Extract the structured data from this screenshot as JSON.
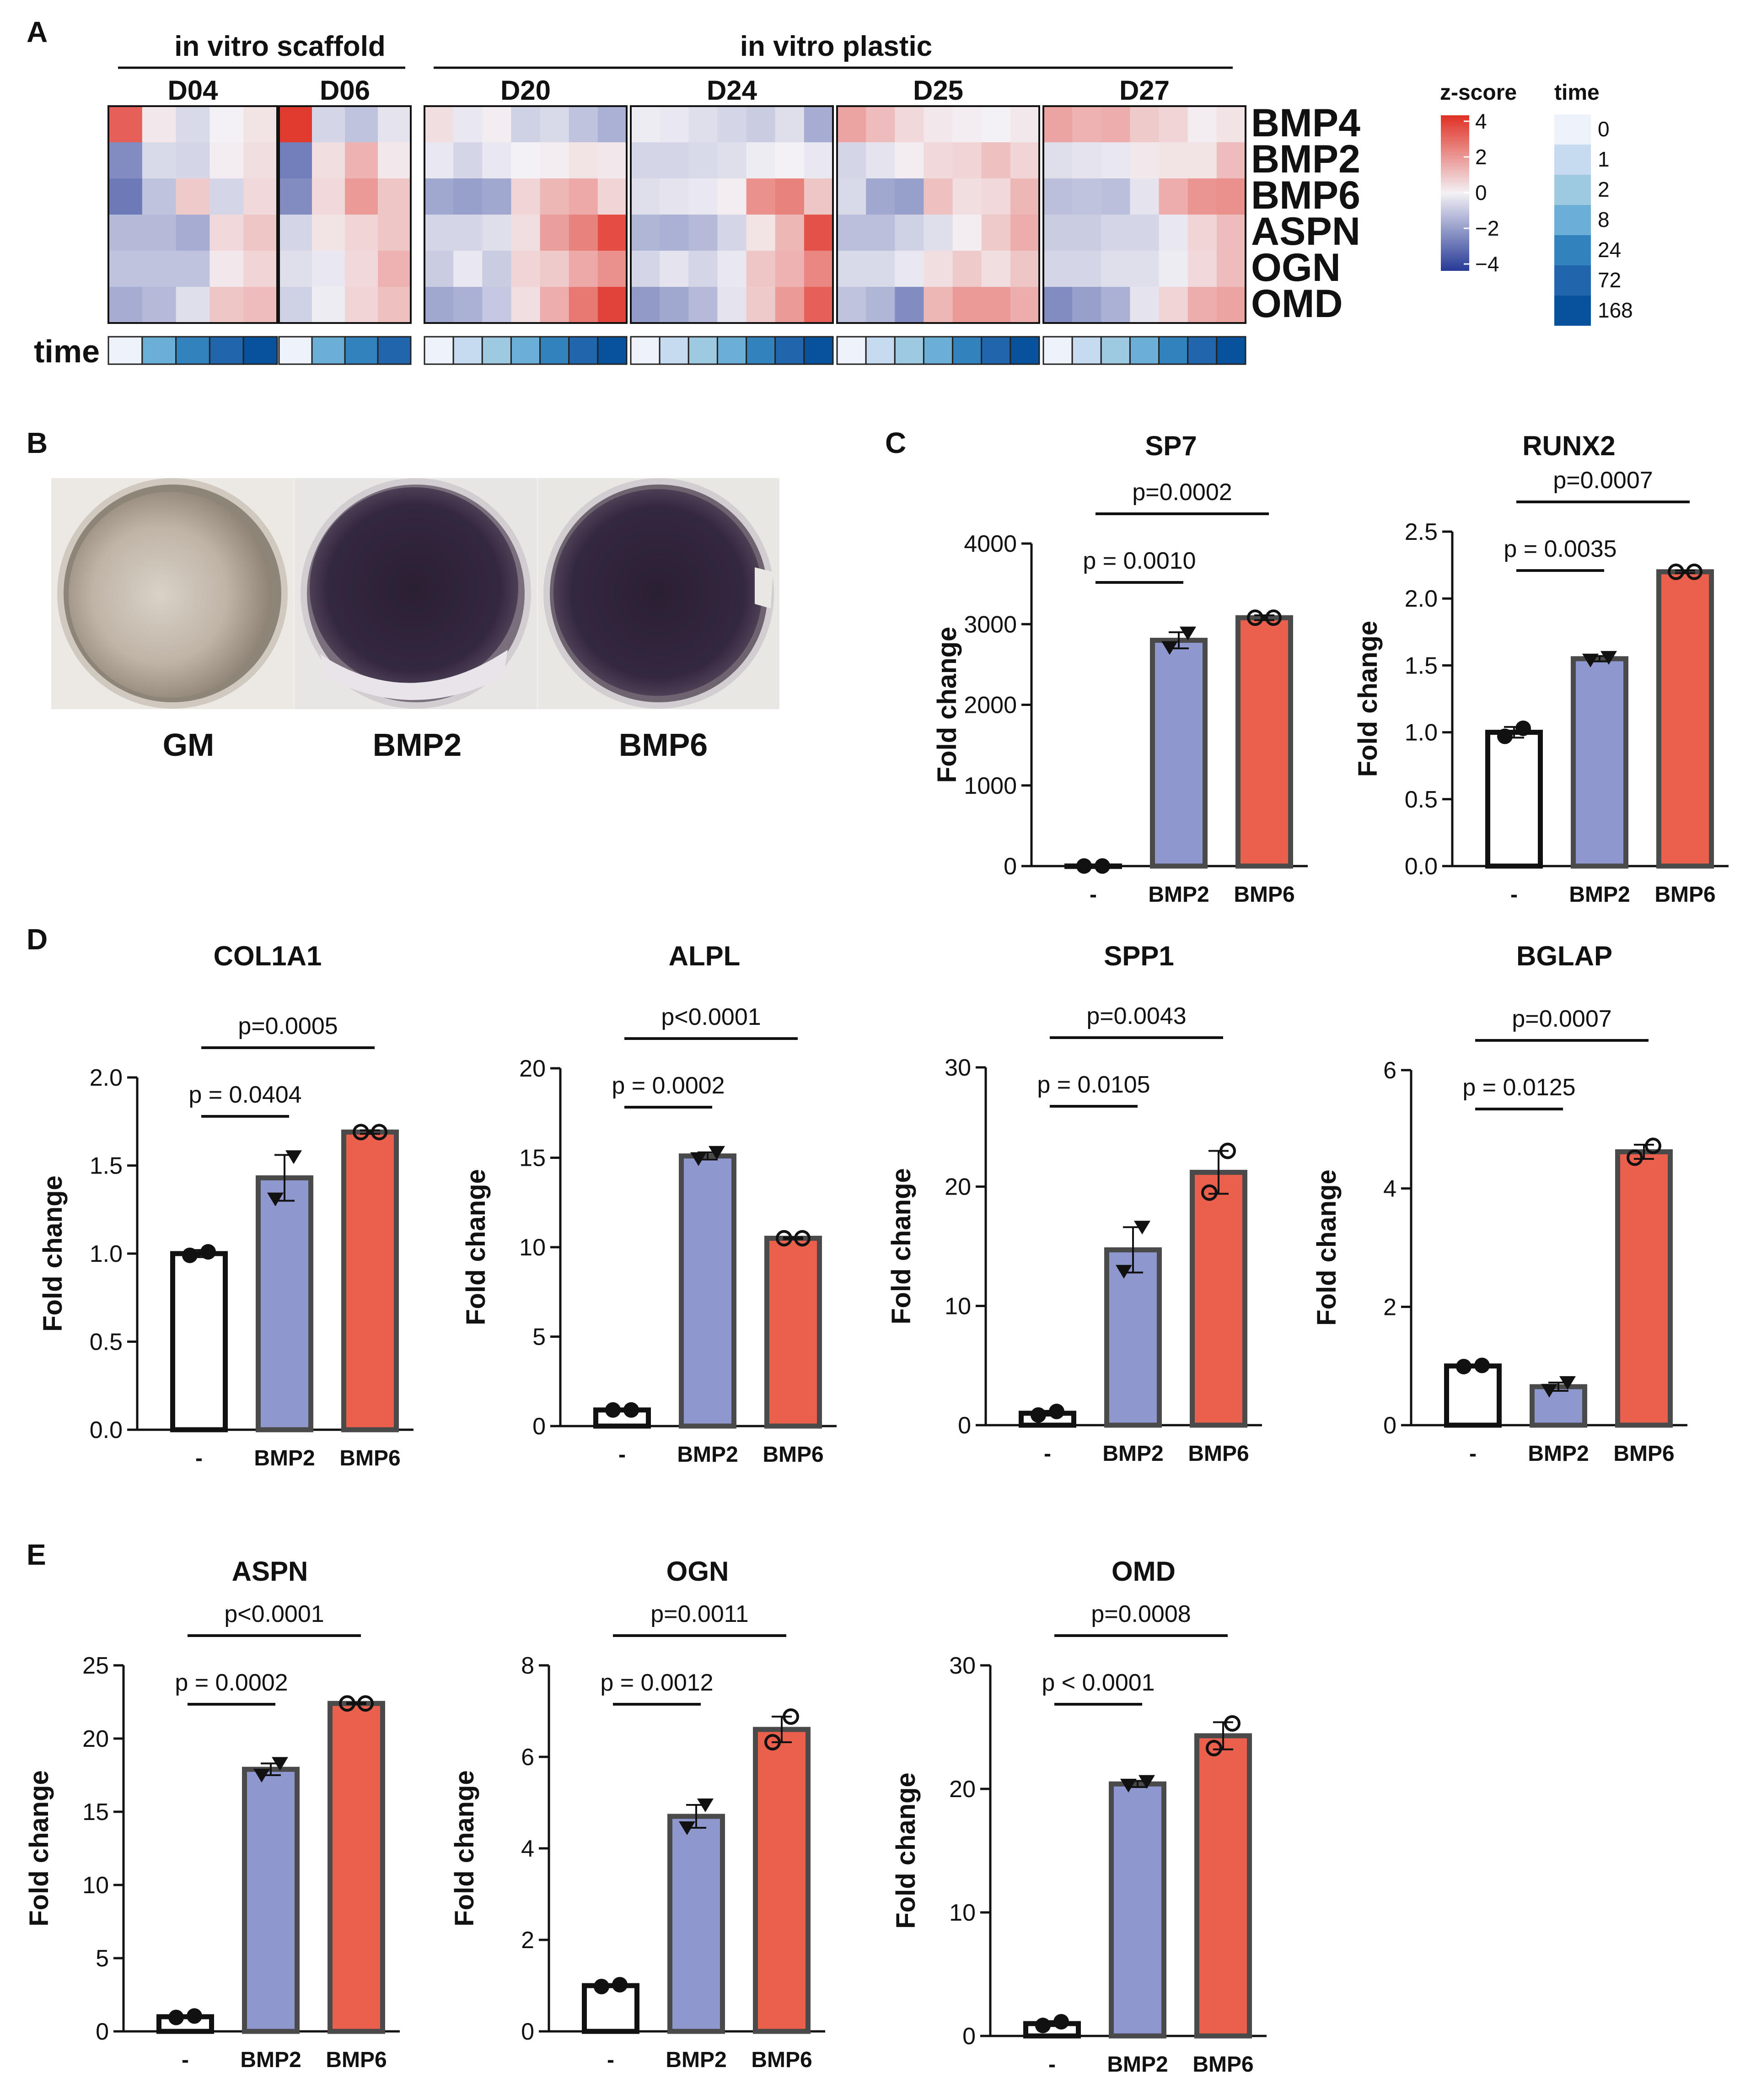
{
  "panel_labels": [
    "A",
    "B",
    "C",
    "D",
    "E"
  ],
  "panel_a": {
    "group_labels": [
      "in vitro scaffold",
      "in vitro plastic"
    ],
    "row_label": "time",
    "genes": [
      "BMP4",
      "BMP2",
      "BMP6",
      "ASPN",
      "OGN",
      "OMD"
    ],
    "legend": {
      "zscore_title": "z-score",
      "zscore_ticks": [
        "4",
        "2",
        "0",
        "−2",
        "−4"
      ],
      "time_title": "time",
      "time_values": [
        "0",
        "1",
        "2",
        "8",
        "24",
        "72",
        "168"
      ],
      "time_colors": [
        "#eef3fb",
        "#c6dbef",
        "#9ecae1",
        "#6baed6",
        "#3182bd",
        "#2166ac",
        "#08519c"
      ]
    },
    "heatmaps": [
      {
        "label": "D04",
        "time_idx": [
          0,
          3,
          4,
          5,
          6
        ],
        "z": [
          [
            3.0,
            0.2,
            -0.5,
            0.0,
            0.3
          ],
          [
            -2.2,
            -0.5,
            -0.6,
            0.1,
            0.4
          ],
          [
            -2.6,
            -1.0,
            0.8,
            -0.6,
            0.5
          ],
          [
            -1.2,
            -1.2,
            -1.5,
            0.5,
            0.9
          ],
          [
            -1.0,
            -1.0,
            -1.0,
            0.2,
            0.6
          ],
          [
            -1.5,
            -1.2,
            -0.4,
            0.9,
            1.1
          ]
        ]
      },
      {
        "label": "D06",
        "time_idx": [
          0,
          3,
          4,
          5
        ],
        "z": [
          [
            3.8,
            -0.6,
            -1.0,
            -0.3
          ],
          [
            -2.5,
            0.4,
            1.3,
            0.2
          ],
          [
            -2.2,
            0.5,
            1.8,
            0.9
          ],
          [
            -0.6,
            0.3,
            0.6,
            0.9
          ],
          [
            -0.4,
            -0.2,
            0.5,
            1.3
          ],
          [
            -0.7,
            -0.1,
            0.6,
            1.0
          ]
        ]
      },
      {
        "label": "D20",
        "time_idx": [
          0,
          1,
          2,
          3,
          4,
          5,
          6
        ],
        "z": [
          [
            0.4,
            -0.2,
            0.1,
            -0.7,
            -0.5,
            -1.0,
            -1.4
          ],
          [
            -0.2,
            -0.6,
            -0.2,
            0.0,
            0.1,
            0.3,
            0.2
          ],
          [
            -1.6,
            -1.8,
            -1.6,
            0.6,
            1.2,
            1.5,
            0.6
          ],
          [
            -0.6,
            -0.6,
            -0.4,
            0.4,
            1.7,
            2.3,
            3.4
          ],
          [
            -0.8,
            -0.2,
            -0.8,
            0.6,
            0.8,
            1.5,
            2.0
          ],
          [
            -1.6,
            -1.4,
            -0.9,
            0.4,
            1.4,
            2.5,
            3.6
          ]
        ]
      },
      {
        "label": "D24",
        "time_idx": [
          0,
          1,
          2,
          3,
          4,
          5,
          6
        ],
        "z": [
          [
            -0.1,
            -0.2,
            -0.4,
            -0.6,
            -0.8,
            -0.4,
            -1.5
          ],
          [
            -0.6,
            -0.6,
            -0.5,
            -0.4,
            -0.1,
            0.0,
            -0.2
          ],
          [
            -0.4,
            -0.3,
            -0.2,
            0.1,
            2.0,
            2.3,
            0.9
          ],
          [
            -1.3,
            -1.4,
            -1.2,
            -0.6,
            0.3,
            1.2,
            3.3
          ],
          [
            -0.6,
            -0.3,
            -0.6,
            -0.2,
            0.9,
            1.3,
            2.2
          ],
          [
            -1.9,
            -1.6,
            -1.2,
            -0.3,
            0.8,
            1.8,
            3.0
          ]
        ]
      },
      {
        "label": "D25",
        "time_idx": [
          0,
          1,
          2,
          3,
          4,
          5,
          6
        ],
        "z": [
          [
            1.6,
            1.1,
            0.5,
            0.2,
            0.1,
            0.0,
            0.2
          ],
          [
            -0.6,
            -0.3,
            0.1,
            0.5,
            0.6,
            1.0,
            0.6
          ],
          [
            -0.5,
            -1.6,
            -1.8,
            1.0,
            0.4,
            0.5,
            1.2
          ],
          [
            -1.1,
            -1.1,
            -0.7,
            -0.4,
            0.1,
            0.8,
            1.4
          ],
          [
            -0.5,
            -0.5,
            -0.2,
            0.4,
            0.8,
            0.4,
            0.9
          ],
          [
            -1.0,
            -1.3,
            -2.2,
            1.2,
            1.8,
            1.8,
            1.4
          ]
        ]
      },
      {
        "label": "D27",
        "time_idx": [
          0,
          1,
          2,
          3,
          4,
          5,
          6
        ],
        "z": [
          [
            1.6,
            1.3,
            1.4,
            0.8,
            0.6,
            0.1,
            0.3
          ],
          [
            -0.4,
            -0.3,
            -0.2,
            0.2,
            0.3,
            0.3,
            1.1
          ],
          [
            -1.1,
            -1.0,
            -1.1,
            -0.3,
            1.4,
            1.9,
            2.0
          ],
          [
            -0.8,
            -0.8,
            -0.6,
            -0.6,
            -0.2,
            0.6,
            1.1
          ],
          [
            -0.6,
            -0.6,
            -0.4,
            -0.4,
            -0.1,
            0.5,
            1.1
          ],
          [
            -2.2,
            -1.8,
            -1.4,
            -0.3,
            0.6,
            1.4,
            1.6
          ]
        ]
      }
    ]
  },
  "panel_b": {
    "wells": [
      {
        "label": "GM",
        "stain": "light"
      },
      {
        "label": "BMP2",
        "stain": "dark"
      },
      {
        "label": "BMP6",
        "stain": "dark"
      }
    ]
  },
  "chart_data": [
    {
      "type": "bar",
      "title": "SP7",
      "ylabel": "Fold change",
      "categories": [
        "-",
        "BMP2",
        "BMP6"
      ],
      "values": [
        1,
        2800,
        3080
      ],
      "errors": [
        3,
        100,
        30
      ],
      "ylim": [
        0,
        4000
      ],
      "yticks": [
        "0",
        "1000",
        "2000",
        "3000",
        "4000"
      ],
      "points": [
        [
          1,
          1
        ],
        [
          2710,
          2890
        ],
        [
          3080,
          3080
        ]
      ],
      "comparisons": [
        {
          "text": "p = 0.0010",
          "from": 0,
          "to": 1
        },
        {
          "text": "p=0.0002",
          "from": 0,
          "to": 2
        }
      ]
    },
    {
      "type": "bar",
      "title": "RUNX2",
      "ylabel": "Fold change",
      "categories": [
        "-",
        "BMP2",
        "BMP6"
      ],
      "values": [
        1.0,
        1.55,
        2.2
      ],
      "errors": [
        0.04,
        0.02,
        0.01
      ],
      "ylim": [
        0,
        2.5
      ],
      "yticks": [
        "0.0",
        "0.5",
        "1.0",
        "1.5",
        "2.0",
        "2.5"
      ],
      "points": [
        [
          0.97,
          1.03
        ],
        [
          1.54,
          1.56
        ],
        [
          2.2,
          2.2
        ]
      ],
      "comparisons": [
        {
          "text": "p = 0.0035",
          "from": 0,
          "to": 1
        },
        {
          "text": "p=0.0007",
          "from": 0,
          "to": 2
        }
      ]
    },
    {
      "type": "bar",
      "title": "COL1A1",
      "ylabel": "Fold change",
      "categories": [
        "-",
        "BMP2",
        "BMP6"
      ],
      "values": [
        1.0,
        1.43,
        1.69
      ],
      "errors": [
        0.02,
        0.13,
        0.01
      ],
      "ylim": [
        0,
        2.0
      ],
      "yticks": [
        "0.0",
        "0.5",
        "1.0",
        "1.5",
        "2.0"
      ],
      "points": [
        [
          0.99,
          1.01
        ],
        [
          1.31,
          1.55
        ],
        [
          1.69,
          1.69
        ]
      ],
      "comparisons": [
        {
          "text": "p = 0.0404",
          "from": 0,
          "to": 1
        },
        {
          "text": "p=0.0005",
          "from": 0,
          "to": 2
        }
      ]
    },
    {
      "type": "bar",
      "title": "ALPL",
      "ylabel": "Fold change",
      "categories": [
        "-",
        "BMP2",
        "BMP6"
      ],
      "values": [
        0.9,
        15.1,
        10.5
      ],
      "errors": [
        0.05,
        0.2,
        0.05
      ],
      "ylim": [
        0,
        20
      ],
      "yticks": [
        "0",
        "5",
        "10",
        "15",
        "20"
      ],
      "points": [
        [
          0.9,
          0.9
        ],
        [
          14.95,
          15.3
        ],
        [
          10.5,
          10.5
        ]
      ],
      "comparisons": [
        {
          "text": "p = 0.0002",
          "from": 0,
          "to": 1
        },
        {
          "text": "p<0.0001",
          "from": 0,
          "to": 2
        }
      ]
    },
    {
      "type": "bar",
      "title": "SPP1",
      "ylabel": "Fold change",
      "categories": [
        "-",
        "BMP2",
        "BMP6"
      ],
      "values": [
        1.0,
        14.7,
        21.2
      ],
      "errors": [
        0.2,
        1.9,
        1.8
      ],
      "ylim": [
        0,
        30
      ],
      "yticks": [
        "0",
        "10",
        "20",
        "30"
      ],
      "points": [
        [
          0.85,
          1.15
        ],
        [
          12.9,
          16.6
        ],
        [
          19.5,
          23.0
        ]
      ],
      "comparisons": [
        {
          "text": "p = 0.0105",
          "from": 0,
          "to": 1
        },
        {
          "text": "p=0.0043",
          "from": 0,
          "to": 2
        }
      ]
    },
    {
      "type": "bar",
      "title": "BGLAP",
      "ylabel": "Fold change",
      "categories": [
        "-",
        "BMP2",
        "BMP6"
      ],
      "values": [
        1.0,
        0.65,
        4.62
      ],
      "errors": [
        0.02,
        0.07,
        0.12
      ],
      "ylim": [
        0,
        6
      ],
      "yticks": [
        "0",
        "2",
        "4",
        "6"
      ],
      "points": [
        [
          0.99,
          1.01
        ],
        [
          0.59,
          0.72
        ],
        [
          4.52,
          4.72
        ]
      ],
      "comparisons": [
        {
          "text": "p = 0.0125",
          "from": 0,
          "to": 1
        },
        {
          "text": "p=0.0007",
          "from": 0,
          "to": 2
        }
      ]
    },
    {
      "type": "bar",
      "title": "ASPN",
      "ylabel": "Fold change",
      "categories": [
        "-",
        "BMP2",
        "BMP6"
      ],
      "values": [
        1.0,
        17.9,
        22.4
      ],
      "errors": [
        0.1,
        0.4,
        0.05
      ],
      "ylim": [
        0,
        25
      ],
      "yticks": [
        "0",
        "5",
        "10",
        "15",
        "20",
        "25"
      ],
      "points": [
        [
          0.95,
          1.05
        ],
        [
          17.5,
          18.3
        ],
        [
          22.4,
          22.4
        ]
      ],
      "comparisons": [
        {
          "text": "p = 0.0002",
          "from": 0,
          "to": 1
        },
        {
          "text": "p<0.0001",
          "from": 0,
          "to": 2
        }
      ]
    },
    {
      "type": "bar",
      "title": "OGN",
      "ylabel": "Fold change",
      "categories": [
        "-",
        "BMP2",
        "BMP6"
      ],
      "values": [
        1.0,
        4.7,
        6.6
      ],
      "errors": [
        0.02,
        0.25,
        0.28
      ],
      "ylim": [
        0,
        8
      ],
      "yticks": [
        "0",
        "2",
        "4",
        "6",
        "8"
      ],
      "points": [
        [
          0.98,
          1.02
        ],
        [
          4.45,
          4.95
        ],
        [
          6.32,
          6.88
        ]
      ],
      "comparisons": [
        {
          "text": "p = 0.0012",
          "from": 0,
          "to": 1
        },
        {
          "text": "p=0.0011",
          "from": 0,
          "to": 2
        }
      ]
    },
    {
      "type": "bar",
      "title": "OMD",
      "ylabel": "Fold change",
      "categories": [
        "-",
        "BMP2",
        "BMP6"
      ],
      "values": [
        1.0,
        20.4,
        24.3
      ],
      "errors": [
        0.2,
        0.25,
        1.1
      ],
      "ylim": [
        0,
        30
      ],
      "yticks": [
        "0",
        "10",
        "20",
        "30"
      ],
      "points": [
        [
          0.85,
          1.15
        ],
        [
          20.3,
          20.6
        ],
        [
          23.3,
          25.3
        ]
      ],
      "comparisons": [
        {
          "text": "p < 0.0001",
          "from": 0,
          "to": 1
        },
        {
          "text": "p=0.0008",
          "from": 0,
          "to": 2
        }
      ]
    }
  ],
  "colors": {
    "control_fill": "#ffffff",
    "bmp2_fill": "#8f97cf",
    "bmp6_fill": "#ea604c",
    "bar_outline": "#4a4a4a",
    "hm_high": "#e03024",
    "hm_mid": "#f3f1f5",
    "hm_low": "#263a97"
  }
}
